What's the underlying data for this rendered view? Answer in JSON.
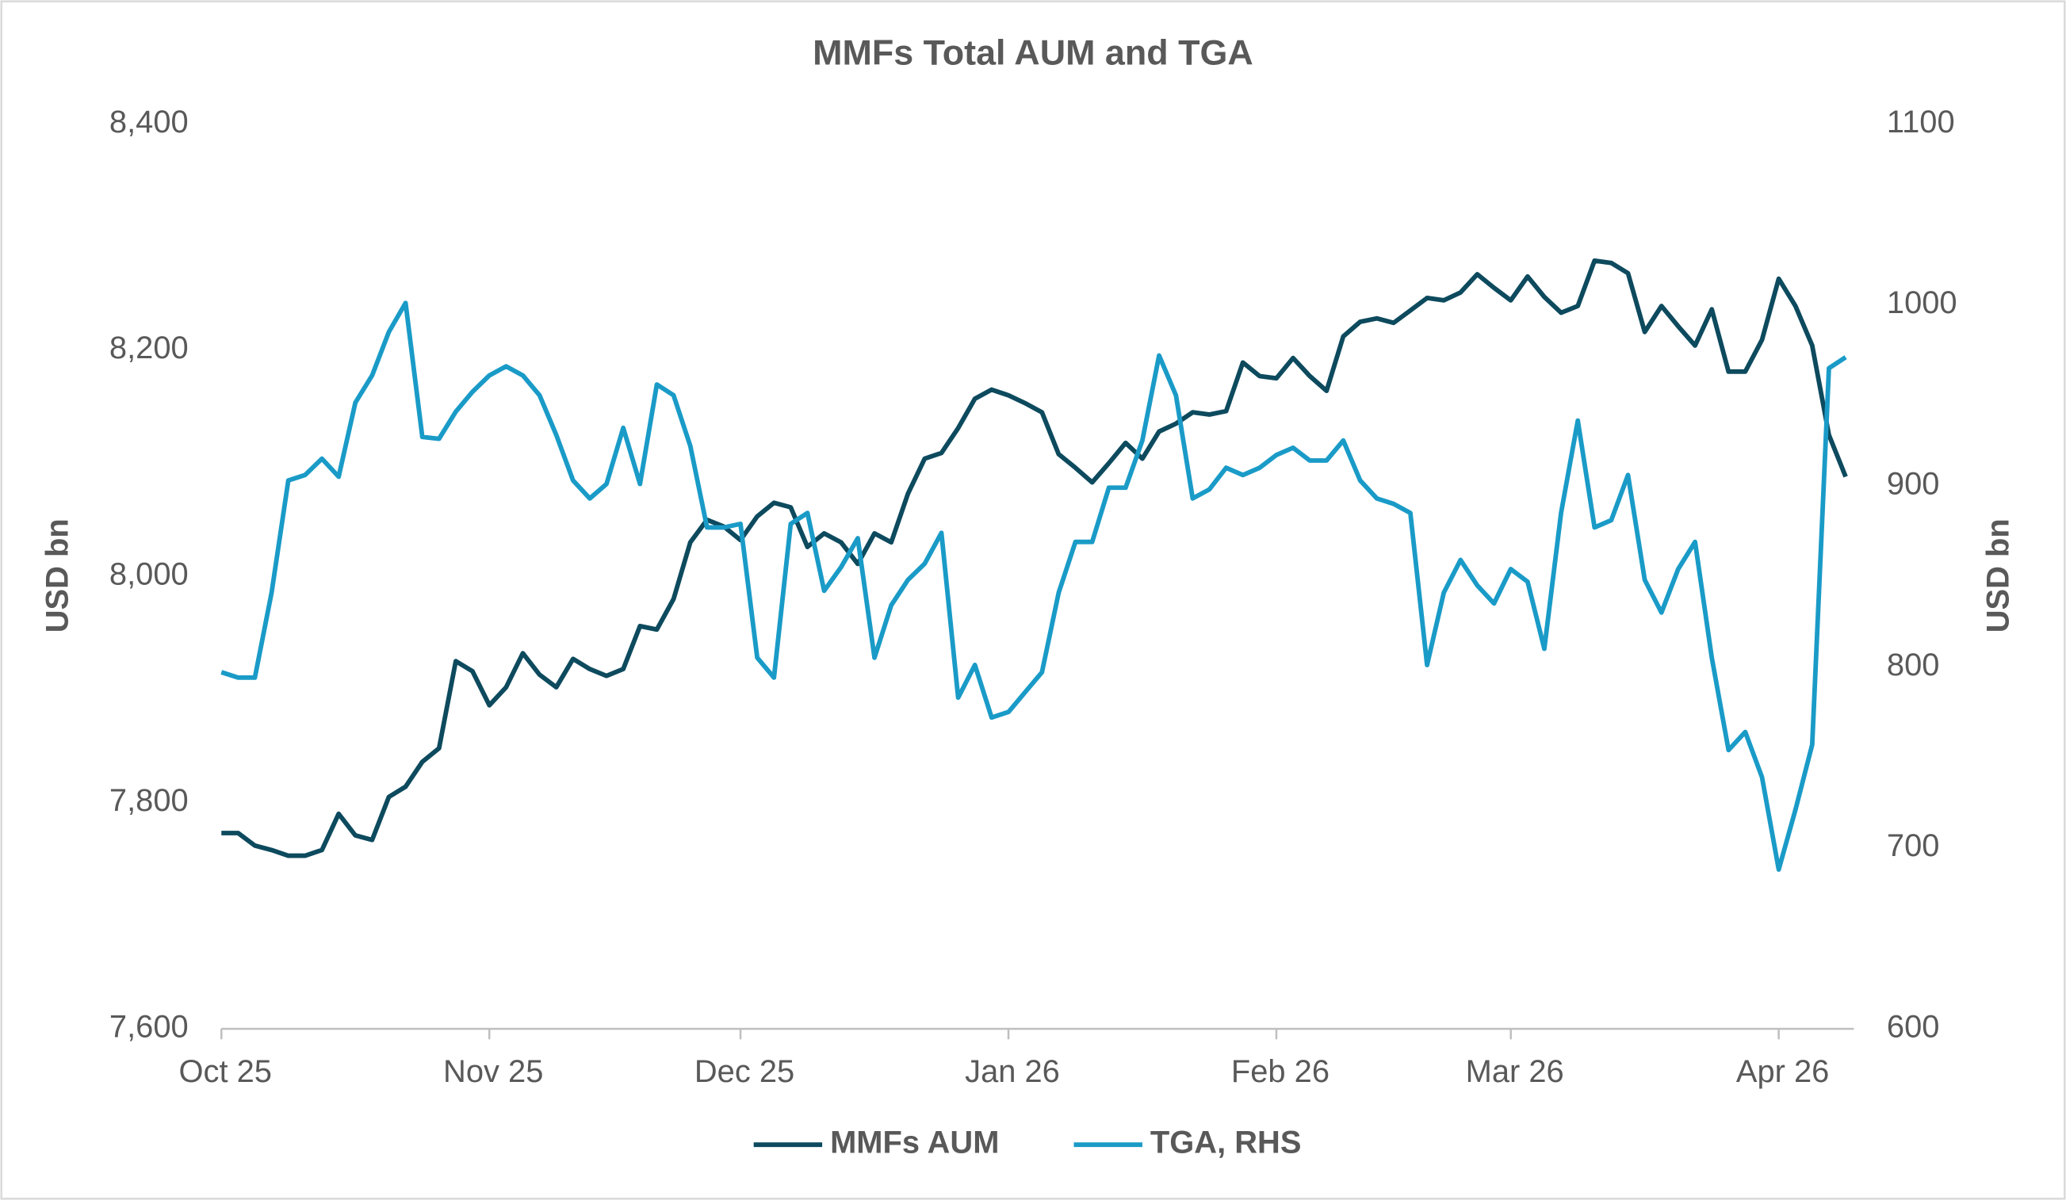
{
  "chart_data": {
    "type": "line",
    "title": "MMFs Total AUM and TGA",
    "y_label": "USD bn",
    "y2_label": "USD bn",
    "categories": [
      "Oct 25",
      null,
      null,
      null,
      null,
      null,
      null,
      null,
      null,
      null,
      null,
      null,
      null,
      null,
      null,
      null,
      "Nov 25",
      null,
      null,
      null,
      null,
      null,
      null,
      null,
      null,
      null,
      null,
      null,
      null,
      null,
      null,
      "Dec 25",
      null,
      null,
      null,
      null,
      null,
      null,
      null,
      null,
      null,
      null,
      null,
      null,
      null,
      null,
      null,
      "Jan 26",
      null,
      null,
      null,
      null,
      null,
      null,
      null,
      null,
      null,
      null,
      null,
      null,
      null,
      null,
      null,
      "Feb 26",
      null,
      null,
      null,
      null,
      null,
      null,
      null,
      null,
      null,
      null,
      null,
      null,
      null,
      "Mar 26",
      null,
      null,
      null,
      null,
      null,
      null,
      null,
      null,
      null,
      null,
      null,
      null,
      null,
      null,
      null,
      "Apr 26",
      null,
      null,
      null,
      null
    ],
    "series": [
      {
        "name": "MMFs AUM",
        "color": "#0d4a5e",
        "values": [
          7773,
          7773,
          7762,
          7758,
          7753,
          7753,
          7758,
          7790,
          7771,
          7767,
          7805,
          7814,
          7836,
          7848,
          7925,
          7916,
          7886,
          7902,
          7932,
          7913,
          7902,
          7927,
          7918,
          7912,
          7918,
          7956,
          7953,
          7980,
          8030,
          8050,
          8044,
          8032,
          8053,
          8065,
          8061,
          8026,
          8038,
          8030,
          8011,
          8038,
          8030,
          8073,
          8104,
          8109,
          8131,
          8157,
          8165,
          8160,
          8153,
          8145,
          8108,
          8096,
          8083,
          8100,
          8118,
          8104,
          8128,
          8135,
          8145,
          8143,
          8146,
          8189,
          8177,
          8175,
          8193,
          8177,
          8164,
          8212,
          8225,
          8228,
          8224,
          8235,
          8246,
          8244,
          8251,
          8267,
          8255,
          8244,
          8265,
          8247,
          8233,
          8239,
          8279,
          8277,
          8268,
          8216,
          8239,
          8221,
          8204,
          8236,
          8181,
          8181,
          8209,
          8263,
          8239,
          8204,
          8125,
          8088
        ]
      },
      {
        "name": "TGA, RHS",
        "color": "#1a9bc7",
        "axis": "y2",
        "values": [
          797,
          794,
          794,
          841,
          903,
          906,
          915,
          905,
          946,
          961,
          985,
          1001,
          927,
          926,
          941,
          952,
          961,
          966,
          961,
          950,
          928,
          903,
          893,
          901,
          932,
          901,
          956,
          950,
          922,
          877,
          877,
          879,
          805,
          794,
          879,
          885,
          842,
          855,
          871,
          805,
          834,
          848,
          857,
          874,
          783,
          801,
          772,
          775,
          786,
          797,
          841,
          869,
          869,
          899,
          899,
          925,
          972,
          950,
          893,
          898,
          910,
          906,
          910,
          917,
          921,
          914,
          914,
          925,
          903,
          893,
          890,
          885,
          801,
          841,
          859,
          845,
          835,
          854,
          847,
          810,
          885,
          936,
          877,
          881,
          906,
          848,
          830,
          854,
          869,
          805,
          754,
          764,
          739,
          688,
          721,
          757,
          965,
          971
        ]
      }
    ],
    "ylim": [
      7600,
      8400
    ],
    "yticks": [
      {
        "value": 7600,
        "label": "7,600"
      },
      {
        "value": 7800,
        "label": "7,800"
      },
      {
        "value": 8000,
        "label": "8,000"
      },
      {
        "value": 8200,
        "label": "8,200"
      },
      {
        "value": 8400,
        "label": "8,400"
      }
    ],
    "y2lim": [
      600,
      1100
    ],
    "y2ticks": [
      600,
      700,
      800,
      900,
      1000,
      1100
    ],
    "grid": false,
    "legend": "bottom"
  }
}
